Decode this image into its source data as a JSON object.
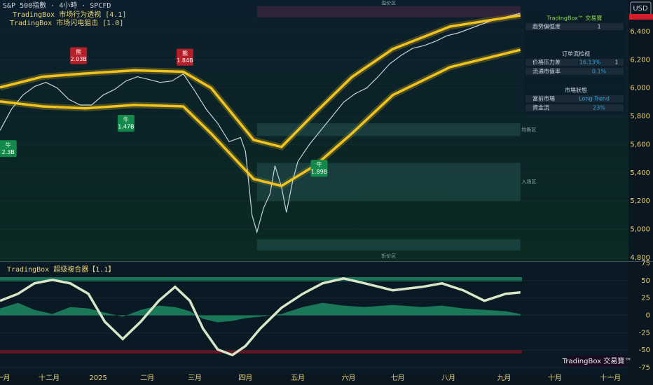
{
  "header": {
    "symbol": "S&P 500指數 · 4小時 · SPCFD",
    "indicators": [
      "TradingBox  市场行为透视 [4.1]",
      "TradingBox  市场闪电狙击 [1.0]"
    ],
    "currency": "USD"
  },
  "panel": {
    "title": "TradingBox™ 交易寶",
    "rows": [
      [
        "趋势偏弧度",
        "1"
      ]
    ],
    "orderflow_title": "订单流检视",
    "orderflow": [
      [
        "价格压力差",
        "16.13%",
        "1"
      ],
      [
        "流通市值率",
        "0.1%"
      ]
    ],
    "state_title": "市場狀態",
    "state": [
      [
        "當前市場",
        "Long Trend"
      ],
      [
        "資金流",
        "23%"
      ]
    ]
  },
  "watermark": "TradingBox 交易寶™",
  "chart_data": [
    {
      "type": "line",
      "xlim": [
        0,
        384
      ],
      "ylim": [
        4775,
        6623
      ],
      "yticks": [
        {
          "value": 4800,
          "label": "4,800"
        },
        {
          "value": 5000,
          "label": "5,000"
        },
        {
          "value": 5200,
          "label": "5,200"
        },
        {
          "value": 5400,
          "label": "5,400"
        },
        {
          "value": 5600,
          "label": "5,600"
        },
        {
          "value": 5800,
          "label": "5,800"
        },
        {
          "value": 6000,
          "label": "6,000"
        },
        {
          "value": 6200,
          "label": "6,200"
        },
        {
          "value": 6400,
          "label": "6,400"
        }
      ],
      "series": [
        {
          "color": "#c8d2d8",
          "x": [
            0,
            7,
            14,
            21,
            28,
            35,
            42,
            49,
            56,
            63,
            70,
            77,
            84,
            91,
            98,
            105,
            112,
            119,
            126,
            133,
            140,
            147,
            150,
            154,
            157,
            161,
            165,
            168,
            172,
            175,
            179,
            182,
            189,
            196,
            203,
            210,
            217,
            224,
            231,
            238,
            245,
            252,
            259,
            266,
            273,
            280,
            287,
            294,
            301,
            308,
            315,
            318
          ],
          "values": [
            5700,
            5850,
            5950,
            6010,
            6040,
            6000,
            5920,
            5880,
            5880,
            5950,
            5990,
            6050,
            6080,
            6060,
            6040,
            6050,
            6100,
            5980,
            5850,
            5750,
            5620,
            5650,
            5550,
            5100,
            4980,
            5150,
            5250,
            5450,
            5300,
            5120,
            5350,
            5480,
            5600,
            5700,
            5800,
            5900,
            5960,
            6000,
            6080,
            6170,
            6230,
            6280,
            6300,
            6330,
            6370,
            6390,
            6420,
            6450,
            6480,
            6500,
            6520,
            6530
          ]
        },
        {
          "color": "#f2c31c",
          "x": [
            0,
            26,
            52,
            82,
            112,
            129,
            155,
            172,
            193,
            215,
            240,
            275,
            318
          ],
          "values": [
            6004,
            6080,
            6103,
            6125,
            6115,
            6000,
            5632,
            5583,
            5830,
            6078,
            6276,
            6435,
            6514
          ]
        },
        {
          "color": "#f2c31c",
          "x": [
            0,
            26,
            52,
            82,
            112,
            129,
            155,
            172,
            193,
            215,
            240,
            275,
            318
          ],
          "values": [
            5905,
            5870,
            5856,
            5880,
            5870,
            5678,
            5356,
            5307,
            5455,
            5678,
            5950,
            6148,
            6270
          ]
        }
      ],
      "zones": [
        {
          "label": "溢价区",
          "range": [
            6500,
            6580
          ],
          "x": [
            157,
            318
          ]
        },
        {
          "label": "均衡区",
          "range": [
            5660,
            5750
          ],
          "x": [
            157,
            318
          ]
        },
        {
          "label": "入场区",
          "range": [
            5200,
            5470
          ],
          "x": [
            157,
            318
          ]
        },
        {
          "label": "折价区",
          "range": [
            4850,
            4930
          ],
          "x": [
            157,
            318
          ]
        }
      ],
      "annotations": [
        {
          "text": "熊",
          "value": "2.03B",
          "x": 48,
          "y": 6100,
          "color": "#b3202a"
        },
        {
          "text": "熊",
          "value": "1.84B",
          "x": 113,
          "y": 6090,
          "color": "#b3202a"
        },
        {
          "text": "牛",
          "value": "1.47B",
          "x": 77,
          "y": 5880,
          "color": "#138a4a"
        },
        {
          "text": "牛",
          "value": "2.3B",
          "x": 5,
          "y": 5700,
          "color": "#138a4a"
        },
        {
          "text": "牛",
          "value": "1.89B",
          "x": 195,
          "y": 5560,
          "color": "#138a4a"
        }
      ]
    },
    {
      "type": "line",
      "title": "TradingBox   超级複合器【1.1】",
      "xlim": [
        0,
        384
      ],
      "ylim": [
        -85,
        78
      ],
      "yticks": [
        75,
        50,
        25,
        0,
        -25,
        -50,
        -75
      ],
      "xticks": [
        {
          "value": 2,
          "label": "一月"
        },
        {
          "value": 30,
          "label": "十二月"
        },
        {
          "value": 60,
          "label": "2025"
        },
        {
          "value": 90,
          "label": "二月"
        },
        {
          "value": 119,
          "label": "三月"
        },
        {
          "value": 150,
          "label": "四月"
        },
        {
          "value": 182,
          "label": "五月"
        },
        {
          "value": 213,
          "label": "六月"
        },
        {
          "value": 243,
          "label": "七月"
        },
        {
          "value": 274,
          "label": "八月"
        },
        {
          "value": 308,
          "label": "九月"
        },
        {
          "value": 339,
          "label": "十月"
        },
        {
          "value": 373,
          "label": "十一月"
        }
      ],
      "series": [
        {
          "color": "#2ee89a",
          "fill": true,
          "x": [
            0,
            11,
            21,
            32,
            43,
            54,
            64,
            75,
            86,
            97,
            107,
            116,
            124,
            133,
            142,
            150,
            159,
            172,
            185,
            197,
            210,
            223,
            240,
            258,
            270,
            283,
            296,
            309,
            318
          ],
          "values": [
            10,
            18,
            8,
            2,
            12,
            10,
            4,
            -2,
            8,
            14,
            12,
            6,
            -5,
            -10,
            -8,
            -4,
            -2,
            2,
            12,
            18,
            14,
            12,
            15,
            12,
            14,
            10,
            8,
            6,
            2
          ]
        },
        {
          "color": "#d8e6c8",
          "x": [
            0,
            11,
            21,
            32,
            43,
            54,
            64,
            75,
            86,
            97,
            107,
            116,
            124,
            133,
            142,
            150,
            159,
            172,
            185,
            197,
            210,
            223,
            240,
            258,
            270,
            283,
            296,
            309,
            318
          ],
          "values": [
            21,
            31,
            46,
            51,
            46,
            31,
            -9,
            -34,
            -9,
            21,
            41,
            21,
            -19,
            -49,
            -57,
            -44,
            -19,
            11,
            31,
            46,
            53,
            46,
            36,
            41,
            46,
            36,
            21,
            31,
            33
          ]
        }
      ]
    }
  ]
}
